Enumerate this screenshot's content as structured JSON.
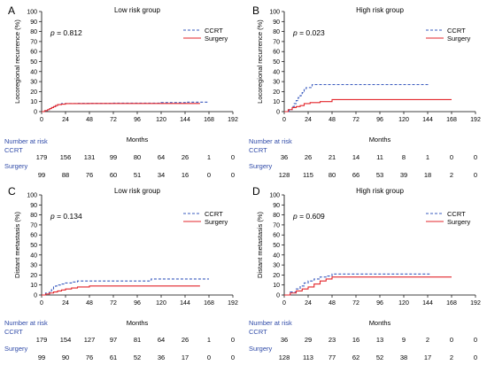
{
  "chart_data": [
    {
      "type": "line",
      "panel_letter": "A",
      "title": "Low risk group",
      "p_value": "0.812",
      "xlabel": "Months",
      "ylabel": "Locoregional recurrence (%)",
      "xlim": [
        0,
        192
      ],
      "ylim": [
        0,
        100
      ],
      "xticks": [
        0,
        24,
        48,
        72,
        96,
        120,
        144,
        168,
        192
      ],
      "yticks": [
        0,
        10,
        20,
        30,
        40,
        50,
        60,
        70,
        80,
        90,
        100
      ],
      "legend_position": "top-right",
      "series": [
        {
          "name": "CCRT",
          "color": "#3a5bbf",
          "dash": "dashed",
          "x": [
            0,
            3,
            6,
            8,
            10,
            12,
            14,
            16,
            18,
            20,
            24,
            36,
            48,
            72,
            96,
            120,
            145,
            168
          ],
          "y": [
            0,
            1,
            2,
            3,
            4,
            5,
            6,
            7,
            7.5,
            8,
            8,
            8.2,
            8.2,
            8.5,
            8.5,
            9,
            9.5,
            9.5
          ]
        },
        {
          "name": "Surgery",
          "color": "#e3262b",
          "dash": "solid",
          "x": [
            0,
            3,
            6,
            8,
            10,
            12,
            14,
            16,
            20,
            24,
            30,
            48,
            96,
            159
          ],
          "y": [
            0,
            1,
            2,
            3,
            4,
            5,
            6,
            7,
            7.5,
            8,
            8,
            8.1,
            8.1,
            8.1
          ]
        }
      ],
      "risk_table": {
        "header": "Number at risk",
        "times": [
          0,
          24,
          48,
          72,
          96,
          120,
          144,
          168,
          192
        ],
        "rows": [
          {
            "label": "CCRT",
            "values": [
              "179",
              "156",
              "131",
              "99",
              "80",
              "64",
              "26",
              "1",
              "0"
            ]
          },
          {
            "label": "Surgery",
            "values": [
              "99",
              "88",
              "76",
              "60",
              "51",
              "34",
              "16",
              "0",
              "0"
            ]
          }
        ]
      }
    },
    {
      "type": "line",
      "panel_letter": "B",
      "title": "High risk group",
      "p_value": "0.023",
      "xlabel": "Months",
      "ylabel": "Locoregional recurrence (%)",
      "xlim": [
        0,
        192
      ],
      "ylim": [
        0,
        100
      ],
      "xticks": [
        0,
        24,
        48,
        72,
        96,
        120,
        144,
        168,
        192
      ],
      "yticks": [
        0,
        10,
        20,
        30,
        40,
        50,
        60,
        70,
        80,
        90,
        100
      ],
      "legend_position": "top-right",
      "series": [
        {
          "name": "CCRT",
          "color": "#3a5bbf",
          "dash": "dashed",
          "x": [
            0,
            5,
            8,
            10,
            12,
            14,
            16,
            18,
            20,
            22,
            24,
            28,
            146
          ],
          "y": [
            0,
            2,
            5,
            8,
            11,
            14,
            16,
            19,
            22,
            24,
            24,
            27,
            27
          ]
        },
        {
          "name": "Surgery",
          "color": "#e3262b",
          "dash": "solid",
          "x": [
            0,
            4,
            8,
            12,
            16,
            20,
            26,
            36,
            48,
            168
          ],
          "y": [
            0,
            2,
            4,
            5,
            6,
            8,
            9,
            10,
            12,
            12
          ]
        }
      ],
      "risk_table": {
        "header": "Number at risk",
        "times": [
          0,
          24,
          48,
          72,
          96,
          120,
          144,
          168,
          192
        ],
        "rows": [
          {
            "label": "CCRT",
            "values": [
              "36",
              "26",
              "21",
              "14",
              "11",
              "8",
              "1",
              "0",
              "0"
            ]
          },
          {
            "label": "Surgery",
            "values": [
              "128",
              "115",
              "80",
              "66",
              "53",
              "39",
              "18",
              "2",
              "0"
            ]
          }
        ]
      }
    },
    {
      "type": "line",
      "panel_letter": "C",
      "title": "Low risk group",
      "p_value": "0.134",
      "xlabel": "Months",
      "ylabel": "Distant metastasis (%)",
      "xlim": [
        0,
        192
      ],
      "ylim": [
        0,
        100
      ],
      "xticks": [
        0,
        24,
        48,
        72,
        96,
        120,
        144,
        168,
        192
      ],
      "yticks": [
        0,
        10,
        20,
        30,
        40,
        50,
        60,
        70,
        80,
        90,
        100
      ],
      "legend_position": "top-right",
      "series": [
        {
          "name": "CCRT",
          "color": "#3a5bbf",
          "dash": "dashed",
          "x": [
            0,
            4,
            8,
            10,
            12,
            14,
            16,
            20,
            24,
            30,
            36,
            48,
            72,
            96,
            110,
            168
          ],
          "y": [
            0,
            2,
            4,
            6,
            8,
            9,
            10,
            11,
            12,
            13,
            14,
            14,
            14,
            14,
            16,
            16
          ]
        },
        {
          "name": "Surgery",
          "color": "#e3262b",
          "dash": "solid",
          "x": [
            0,
            4,
            8,
            12,
            16,
            20,
            24,
            30,
            36,
            48,
            159
          ],
          "y": [
            0,
            1,
            2,
            3,
            4,
            5,
            6,
            7,
            8,
            9,
            9
          ]
        }
      ],
      "risk_table": {
        "header": "Number at risk",
        "times": [
          0,
          24,
          48,
          72,
          96,
          120,
          144,
          168,
          192
        ],
        "rows": [
          {
            "label": "CCRT",
            "values": [
              "179",
              "154",
              "127",
              "97",
              "81",
              "64",
              "26",
              "1",
              "0"
            ]
          },
          {
            "label": "Surgery",
            "values": [
              "99",
              "90",
              "76",
              "61",
              "52",
              "36",
              "17",
              "0",
              "0"
            ]
          }
        ]
      }
    },
    {
      "type": "line",
      "panel_letter": "D",
      "title": "High risk group",
      "p_value": "0.609",
      "xlabel": "Months",
      "ylabel": "Distant metastasis (%)",
      "xlim": [
        0,
        192
      ],
      "ylim": [
        0,
        100
      ],
      "xticks": [
        0,
        24,
        48,
        72,
        96,
        120,
        144,
        168,
        192
      ],
      "yticks": [
        0,
        10,
        20,
        30,
        40,
        50,
        60,
        70,
        80,
        90,
        100
      ],
      "legend_position": "top-right",
      "series": [
        {
          "name": "CCRT",
          "color": "#3a5bbf",
          "dash": "dashed",
          "x": [
            0,
            6,
            12,
            16,
            20,
            24,
            30,
            36,
            42,
            48,
            146
          ],
          "y": [
            0,
            3,
            6,
            9,
            12,
            14,
            16,
            18,
            19,
            21,
            21
          ]
        },
        {
          "name": "Surgery",
          "color": "#e3262b",
          "dash": "solid",
          "x": [
            0,
            6,
            12,
            18,
            24,
            30,
            36,
            42,
            48,
            168
          ],
          "y": [
            0,
            2,
            4,
            6,
            8,
            11,
            14,
            16,
            18,
            18
          ]
        }
      ],
      "risk_table": {
        "header": "Number at risk",
        "times": [
          0,
          24,
          48,
          72,
          96,
          120,
          144,
          168,
          192
        ],
        "rows": [
          {
            "label": "CCRT",
            "values": [
              "36",
              "29",
              "23",
              "16",
              "13",
              "9",
              "2",
              "0",
              "0"
            ]
          },
          {
            "label": "Surgery",
            "values": [
              "128",
              "113",
              "77",
              "62",
              "52",
              "38",
              "17",
              "2",
              "0"
            ]
          }
        ]
      }
    }
  ]
}
